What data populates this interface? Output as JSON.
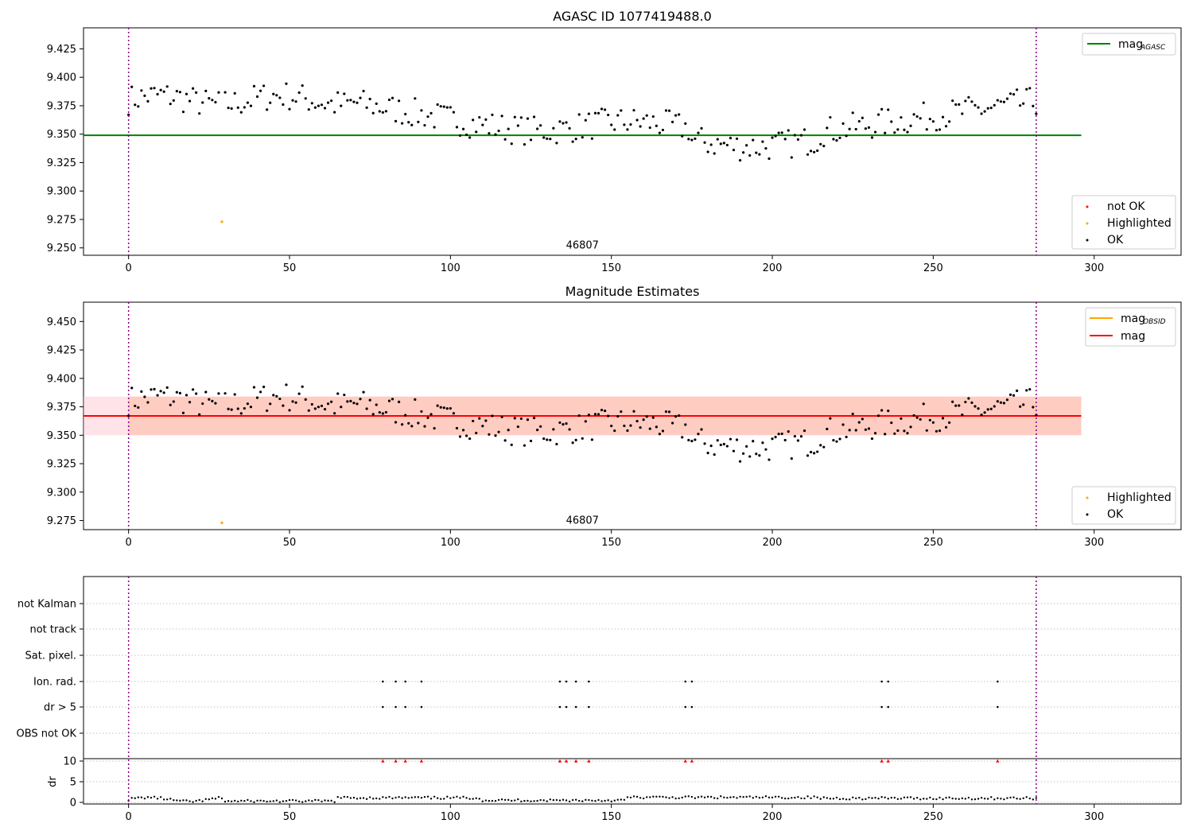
{
  "chart_data": [
    {
      "type": "scatter",
      "title": "AGASC ID 1077419488.0",
      "xlim": [
        -14,
        327
      ],
      "ylim": [
        9.2435,
        9.4435
      ],
      "xticks": [
        0,
        50,
        100,
        150,
        200,
        250,
        300
      ],
      "yticks": [
        9.25,
        9.275,
        9.3,
        9.325,
        9.35,
        9.375,
        9.4,
        9.425
      ],
      "ytick_labels": [
        "9.250",
        "9.275",
        "9.300",
        "9.325",
        "9.350",
        "9.375",
        "9.400",
        "9.425"
      ],
      "hlines": [
        {
          "label": "mag",
          "label_sub": "AGASC",
          "y": 9.349,
          "color": "#008000"
        }
      ],
      "vlines": [
        0,
        282
      ],
      "text_annotations": [
        {
          "text": "46807",
          "x": 141,
          "y": 9.25
        }
      ],
      "highlighted": [
        {
          "x": 29,
          "y": 9.273
        }
      ],
      "legend": {
        "line": "top-right",
        "markers": "bottom-right"
      },
      "marker_legend": [
        {
          "label": "not OK",
          "color": "#ff0000"
        },
        {
          "label": "Highlighted",
          "color": "#ffa500"
        },
        {
          "label": "OK",
          "color": "#000000"
        }
      ]
    },
    {
      "type": "scatter",
      "title": "Magnitude Estimates",
      "xlim": [
        -14,
        327
      ],
      "ylim": [
        9.267,
        9.467
      ],
      "xticks": [
        0,
        50,
        100,
        150,
        200,
        250,
        300
      ],
      "yticks": [
        9.275,
        9.3,
        9.325,
        9.35,
        9.375,
        9.4,
        9.425,
        9.45
      ],
      "ytick_labels": [
        "9.275",
        "9.300",
        "9.325",
        "9.350",
        "9.375",
        "9.400",
        "9.425",
        "9.450"
      ],
      "mean_line": {
        "label": "mag",
        "y": 9.367,
        "color": "#ff0000"
      },
      "obsid_line": {
        "label": "mag",
        "label_sub": "OBSID",
        "color": "#ffa500"
      },
      "band": {
        "y_low": 9.35,
        "y_high": 9.384,
        "x_start": -14,
        "x_end": 296
      },
      "vlines": [
        0,
        282
      ],
      "text_annotations": [
        {
          "text": "46807",
          "x": 141,
          "y": 9.273
        }
      ],
      "highlighted": [
        {
          "x": 29,
          "y": 9.273
        }
      ],
      "legend": {
        "line": "top-right",
        "markers": "bottom-right"
      },
      "marker_legend": [
        {
          "label": "Highlighted",
          "color": "#ffa500"
        },
        {
          "label": "OK",
          "color": "#000000"
        }
      ]
    },
    {
      "type": "scatter",
      "title": "",
      "xlim": [
        -14,
        327
      ],
      "xticks": [
        0,
        50,
        100,
        150,
        200,
        250,
        300
      ],
      "flag_categories": [
        "not Kalman",
        "not track",
        "Sat. pixel.",
        "Ion. rad.",
        "dr > 5",
        "OBS not OK"
      ],
      "flags": {
        "Ion. rad.": [
          79,
          83,
          86,
          91,
          134,
          136,
          139,
          143,
          173,
          175,
          234,
          236,
          270
        ],
        "dr > 5": [
          79,
          83,
          86,
          91,
          134,
          136,
          139,
          143,
          173,
          175,
          234,
          236,
          270
        ]
      },
      "dr_ylabel": "dr",
      "dr_ylim": [
        0,
        10
      ],
      "dr_yticks": [
        0,
        5,
        10
      ],
      "dr_clipped": [
        79,
        83,
        86,
        91,
        134,
        136,
        139,
        143,
        173,
        175,
        234,
        236,
        270
      ],
      "vlines": [
        0,
        282
      ]
    }
  ]
}
